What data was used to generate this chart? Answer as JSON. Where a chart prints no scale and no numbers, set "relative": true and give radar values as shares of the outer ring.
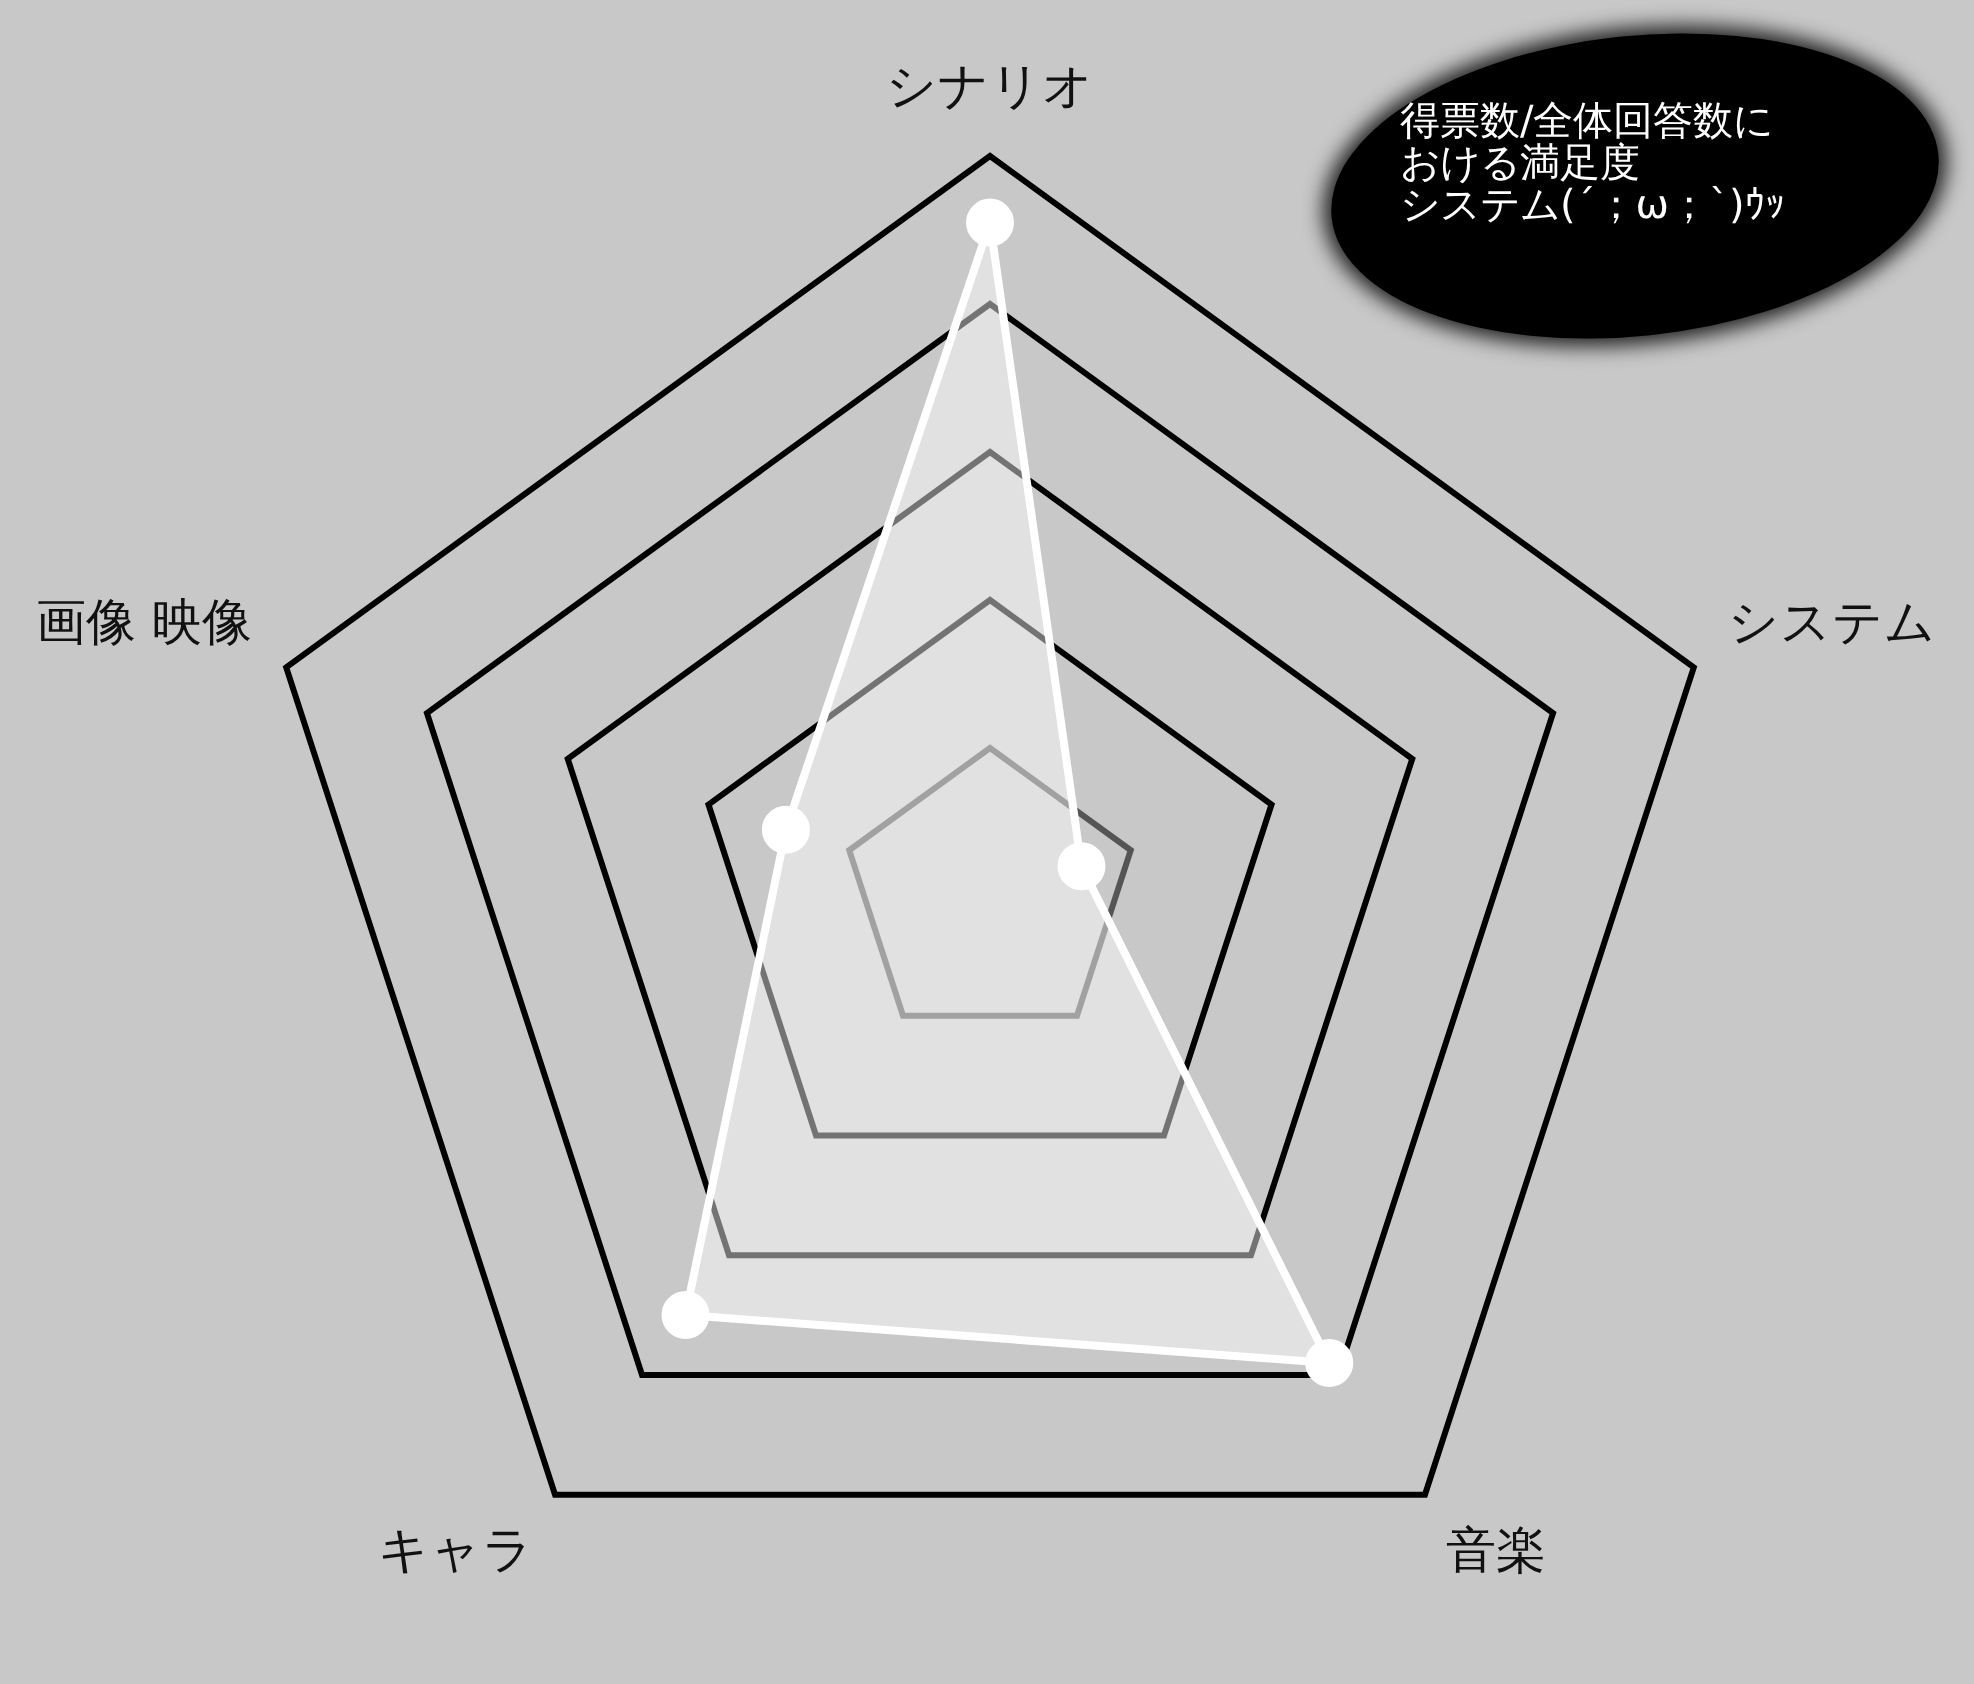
{
  "chart_data": {
    "type": "radar",
    "relative": true,
    "grid": true,
    "legend": false,
    "marker": "circle",
    "categories": [
      "シナリオ",
      "システム",
      "音楽",
      "キャラ",
      "画像 映像"
    ],
    "series": [
      {
        "color": "#ffffff",
        "values": [
          0.91,
          0.13,
          0.78,
          0.7,
          0.29
        ]
      }
    ],
    "annotations": [
      "得票数/全体回答数に",
      "おける満足度",
      "システム(´；ω；`)ｳｯ"
    ]
  }
}
